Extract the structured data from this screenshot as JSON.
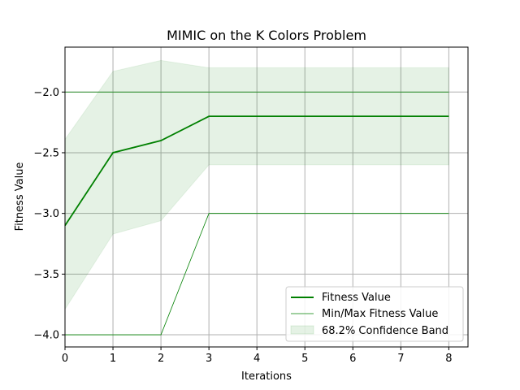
{
  "chart_data": {
    "type": "line",
    "title": "MIMIC on the K Colors Problem",
    "xlabel": "Iterations",
    "ylabel": "Fitness Value",
    "xlim": [
      0,
      8.4
    ],
    "ylim": [
      -4.1,
      -1.63
    ],
    "grid": true,
    "legend_placement": "lower-right",
    "x": [
      0,
      1,
      2,
      3,
      4,
      5,
      6,
      7,
      8
    ],
    "x_ticks": [
      0,
      1,
      2,
      3,
      4,
      5,
      6,
      7,
      8
    ],
    "x_tick_labels": [
      "0",
      "1",
      "2",
      "3",
      "4",
      "5",
      "6",
      "7",
      "8"
    ],
    "y_ticks": [
      -4.0,
      -3.5,
      -3.0,
      -2.5,
      -2.0
    ],
    "y_tick_labels": [
      "−4.0",
      "−3.5",
      "−3.0",
      "−2.5",
      "−2.0"
    ],
    "series": [
      {
        "name": "Fitness Value",
        "kind": "line",
        "color": "#008000",
        "values": [
          -3.1,
          -2.5,
          -2.4,
          -2.2,
          -2.2,
          -2.2,
          -2.2,
          -2.2,
          -2.2
        ]
      },
      {
        "name": "Min/Max Fitness Value",
        "kind": "minmax",
        "color": "#008000",
        "min": [
          -4.0,
          -4.0,
          -4.0,
          -3.0,
          -3.0,
          -3.0,
          -3.0,
          -3.0,
          -3.0
        ],
        "max": [
          -2.0,
          -2.0,
          -2.0,
          -2.0,
          -2.0,
          -2.0,
          -2.0,
          -2.0,
          -2.0
        ]
      },
      {
        "name": "68.2% Confidence Band",
        "kind": "band",
        "color": "#008000",
        "upper": [
          -2.39,
          -1.83,
          -1.74,
          -1.8,
          -1.8,
          -1.8,
          -1.8,
          -1.8,
          -1.8
        ],
        "lower": [
          -3.79,
          -3.17,
          -3.06,
          -2.6,
          -2.6,
          -2.6,
          -2.6,
          -2.6,
          -2.6
        ]
      }
    ]
  }
}
